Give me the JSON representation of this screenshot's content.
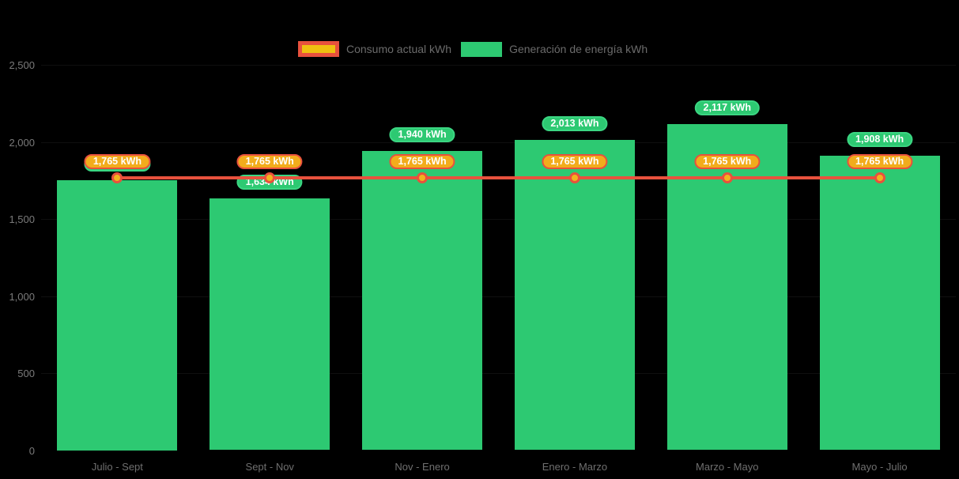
{
  "legend": {
    "items": [
      {
        "label": "Consumo actual kWh"
      },
      {
        "label": "Generación de energía kWh"
      }
    ]
  },
  "colors": {
    "background": "#000000",
    "bar_green": "#2DC972",
    "green_badge_border": "#3BD682",
    "line_red": "#E8513D",
    "badge_gold": "#F2AC1C",
    "legend_swatch_gold": "#EFC010",
    "dot_fill": "#F2B31E",
    "axis_text": "#7A7A7A",
    "legend_text": "#6B6B6B",
    "badge_text": "#FFFFFF"
  },
  "chart_data": {
    "type": "bar",
    "subtype": "bar-with-overlaid-line",
    "title": "",
    "xlabel": "",
    "ylabel": "",
    "categories": [
      "Julio - Sept",
      "Sept - Nov",
      "Nov - Enero",
      "Enero - Marzo",
      "Marzo - Mayo",
      "Mayo - Julio"
    ],
    "series": [
      {
        "name": "Generación de energía kWh",
        "type": "bar",
        "color": "#2DC972",
        "values": [
          1750,
          1634,
          1940,
          2013,
          2117,
          1908
        ],
        "labels": [
          "1,750 kWh",
          "1,634 kWh",
          "1,940 kWh",
          "2,013 kWh",
          "2,117 kWh",
          "1,908 kWh"
        ],
        "note": "first label badge is occluded behind the consumption badge; 1750 estimated from bar height"
      },
      {
        "name": "Consumo actual kWh",
        "type": "line",
        "color": "#E8513D",
        "values": [
          1765,
          1765,
          1765,
          1765,
          1765,
          1765
        ],
        "labels": [
          "1,765 kWh",
          "1,765 kWh",
          "1,765 kWh",
          "1,765 kWh",
          "1,765 kWh",
          "1,765 kWh"
        ]
      }
    ],
    "y_ticks": [
      {
        "value": 0,
        "label": "0"
      },
      {
        "value": 500,
        "label": "500"
      },
      {
        "value": 1000,
        "label": "1,000"
      },
      {
        "value": 1500,
        "label": "1,500"
      },
      {
        "value": 2000,
        "label": "2,000"
      },
      {
        "value": 2500,
        "label": "2,500"
      }
    ],
    "ylim": [
      0,
      2500
    ],
    "grid": "very faint horizontal gridlines",
    "legend_position": "top-center"
  }
}
